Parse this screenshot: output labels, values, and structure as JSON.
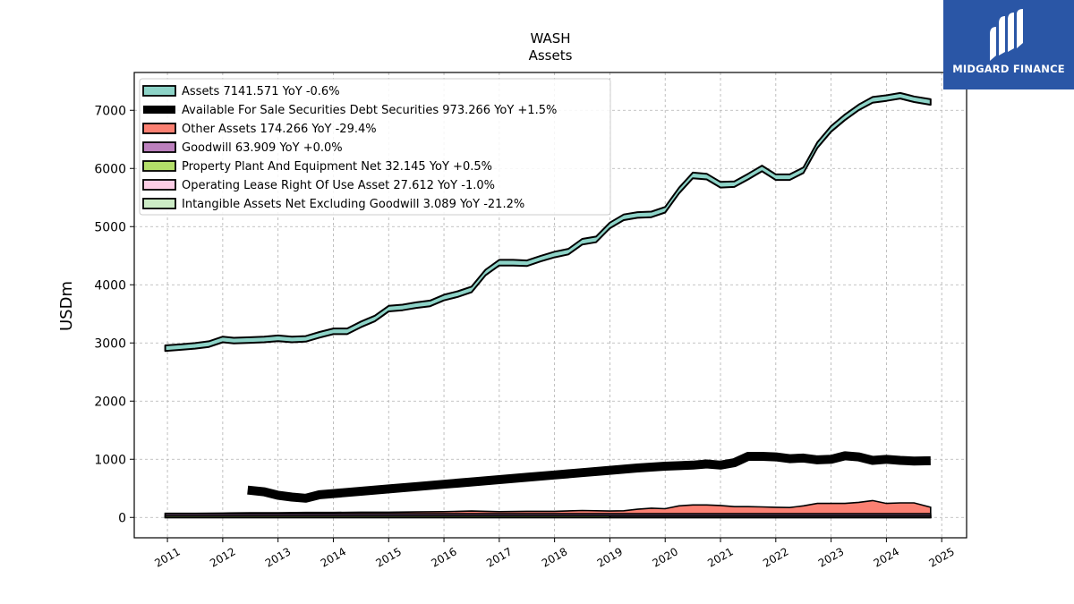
{
  "brand": {
    "name": "MIDGARD FINANCE"
  },
  "chart_data": {
    "type": "line",
    "title": "WASH",
    "subtitle": "Assets",
    "xlabel": "",
    "ylabel": "USDm",
    "xlim": [
      2010.4,
      2025.45
    ],
    "ylim": [
      -350,
      7650
    ],
    "yticks": [
      0,
      1000,
      2000,
      3000,
      4000,
      5000,
      6000,
      7000
    ],
    "xticks": [
      2011,
      2012,
      2013,
      2014,
      2015,
      2016,
      2017,
      2018,
      2019,
      2020,
      2021,
      2022,
      2023,
      2024,
      2025
    ],
    "xtick_labels": [
      "2011",
      "2012",
      "2013",
      "2014",
      "2015",
      "2016",
      "2017",
      "2018",
      "2019",
      "2020",
      "2021",
      "2022",
      "2023",
      "2024",
      "2025"
    ],
    "grid": true,
    "legend_position": "top-left",
    "series": [
      {
        "name": "Assets",
        "legend": "Assets  7141.571 YoY -0.6%",
        "color": "#8dd3c7",
        "kind": "band",
        "x": [
          2010.96,
          2011.25,
          2011.5,
          2011.75,
          2012.0,
          2012.2,
          2012.5,
          2012.75,
          2013.0,
          2013.25,
          2013.5,
          2013.75,
          2014.0,
          2014.25,
          2014.5,
          2014.75,
          2015.0,
          2015.25,
          2015.5,
          2015.75,
          2016.0,
          2016.25,
          2016.5,
          2016.75,
          2017.0,
          2017.25,
          2017.5,
          2017.75,
          2018.0,
          2018.25,
          2018.5,
          2018.75,
          2019.0,
          2019.25,
          2019.5,
          2019.75,
          2020.0,
          2020.25,
          2020.5,
          2020.75,
          2021.0,
          2021.25,
          2021.5,
          2021.75,
          2022.0,
          2022.25,
          2022.5,
          2022.75,
          2023.0,
          2023.25,
          2023.5,
          2023.75,
          2024.0,
          2024.25,
          2024.5,
          2024.8
        ],
        "values": [
          2910,
          2930,
          2950,
          2980,
          3060,
          3040,
          3050,
          3060,
          3080,
          3060,
          3070,
          3140,
          3200,
          3200,
          3320,
          3420,
          3590,
          3610,
          3650,
          3680,
          3780,
          3840,
          3920,
          4210,
          4380,
          4380,
          4370,
          4450,
          4520,
          4570,
          4740,
          4780,
          5020,
          5160,
          5200,
          5210,
          5290,
          5620,
          5880,
          5860,
          5720,
          5730,
          5860,
          6000,
          5850,
          5850,
          5970,
          6400,
          6680,
          6880,
          7050,
          7180,
          7210,
          7250,
          7190,
          7142
        ],
        "band_half_width": 48
      },
      {
        "name": "Available For Sale Securities Debt Securities",
        "legend": "Available For Sale Securities Debt Securities  973.266 YoY +1.5%",
        "color": "#000000",
        "kind": "thick-line",
        "x": [
          2012.45,
          2012.75,
          2013.0,
          2013.25,
          2013.5,
          2013.75,
          2014.0,
          2014.5,
          2015.0,
          2015.5,
          2016.0,
          2016.5,
          2017.0,
          2017.5,
          2018.0,
          2018.5,
          2019.0,
          2019.5,
          2020.0,
          2020.5,
          2020.75,
          2021.0,
          2021.25,
          2021.5,
          2021.75,
          2022.0,
          2022.25,
          2022.5,
          2022.75,
          2023.0,
          2023.25,
          2023.5,
          2023.75,
          2024.0,
          2024.25,
          2024.5,
          2024.8
        ],
        "values": [
          470,
          440,
          380,
          350,
          330,
          390,
          410,
          450,
          490,
          530,
          570,
          610,
          650,
          690,
          730,
          770,
          810,
          850,
          880,
          900,
          920,
          900,
          940,
          1050,
          1050,
          1040,
          1010,
          1020,
          990,
          1000,
          1060,
          1040,
          980,
          1000,
          980,
          970,
          975
        ]
      },
      {
        "name": "Other Assets",
        "legend": "Other Assets  174.266 YoY -29.4%",
        "color": "#fb8072",
        "kind": "area",
        "x": [
          2010.96,
          2011.5,
          2012.0,
          2012.5,
          2013.0,
          2013.5,
          2014.0,
          2014.5,
          2015.0,
          2015.5,
          2016.0,
          2016.5,
          2017.0,
          2017.5,
          2018.0,
          2018.5,
          2019.0,
          2019.25,
          2019.5,
          2019.75,
          2020.0,
          2020.25,
          2020.5,
          2020.75,
          2021.0,
          2021.25,
          2021.5,
          2021.75,
          2022.0,
          2022.25,
          2022.5,
          2022.75,
          2023.0,
          2023.25,
          2023.5,
          2023.75,
          2024.0,
          2024.25,
          2024.5,
          2024.8
        ],
        "values": [
          70,
          70,
          75,
          80,
          80,
          85,
          85,
          90,
          90,
          95,
          100,
          110,
          100,
          105,
          105,
          120,
          110,
          115,
          140,
          160,
          150,
          200,
          215,
          215,
          205,
          185,
          185,
          180,
          175,
          170,
          200,
          240,
          240,
          240,
          260,
          290,
          240,
          250,
          250,
          174
        ]
      },
      {
        "name": "Goodwill",
        "legend": "Goodwill  63.909 YoY +0.0%",
        "color": "#bc80bd",
        "kind": "area",
        "x": [
          2010.96,
          2024.8
        ],
        "values": [
          63.909,
          63.909
        ]
      },
      {
        "name": "Property Plant And Equipment Net",
        "legend": "Property Plant And Equipment Net  32.145 YoY +0.5%",
        "color": "#b3de69",
        "kind": "area",
        "x": [
          2010.96,
          2024.8
        ],
        "values": [
          32,
          32
        ]
      },
      {
        "name": "Operating Lease Right Of Use Asset",
        "legend": "Operating Lease Right Of Use Asset  27.612 YoY -1.0%",
        "color": "#fccde5",
        "kind": "area",
        "x": [
          2019.0,
          2024.8
        ],
        "values": [
          28,
          28
        ]
      },
      {
        "name": "Intangible Assets Net Excluding Goodwill",
        "legend": "Intangible Assets Net Excluding Goodwill  3.089 YoY -21.2%",
        "color": "#ccebc5",
        "kind": "area",
        "x": [
          2010.96,
          2024.8
        ],
        "values": [
          3,
          3
        ]
      }
    ]
  }
}
